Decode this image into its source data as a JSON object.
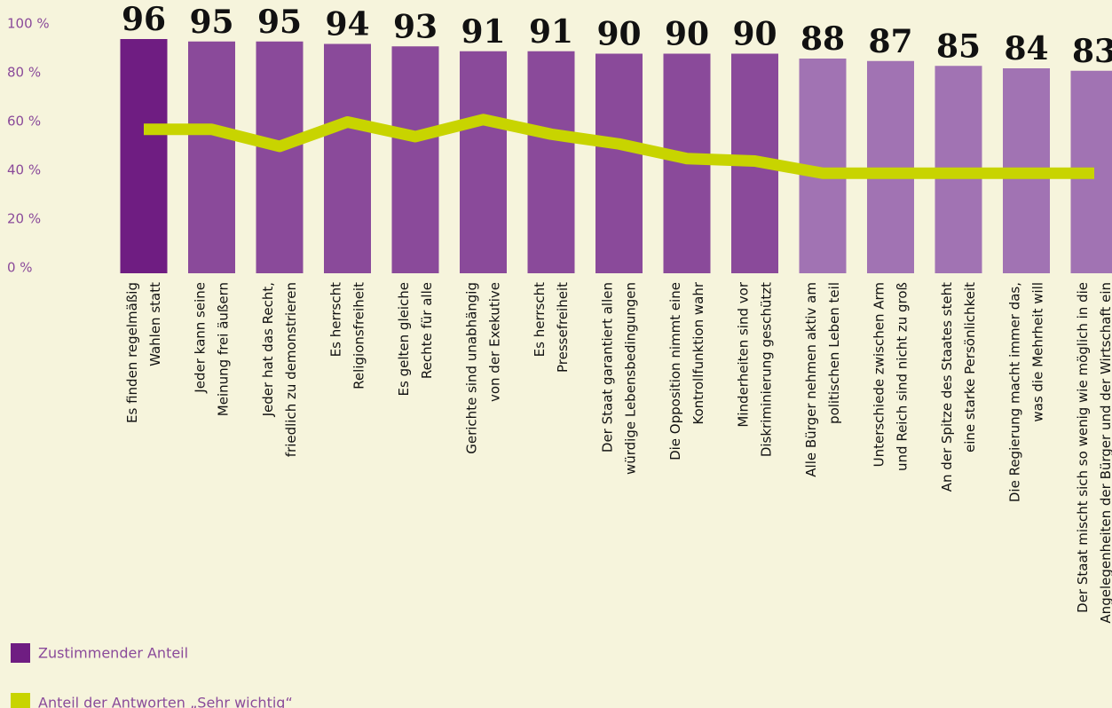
{
  "chart_data": {
    "type": "bar_line",
    "categories": [
      [
        "Es finden regelmäßig",
        "Wahlen statt"
      ],
      [
        "Jeder kann seine",
        "Meinung frei äußern"
      ],
      [
        "Jeder hat das Recht,",
        "friedlich zu demonstrieren"
      ],
      [
        "Es herrscht",
        "Religionsfreiheit"
      ],
      [
        "Es gelten gleiche",
        "Rechte für alle"
      ],
      [
        "Gerichte sind unabhängig",
        "von der Exekutive"
      ],
      [
        "Es herrscht",
        "Pressefreiheit"
      ],
      [
        "Der Staat garantiert allen",
        "würdige Lebensbedingungen"
      ],
      [
        "Die Opposition nimmt eine",
        "Kontrollfunktion wahr"
      ],
      [
        "Minderheiten sind vor",
        "Diskriminierung geschützt"
      ],
      [
        "Alle Bürger nehmen aktiv am",
        "politischen Leben teil"
      ],
      [
        "Unterschiede zwischen Arm",
        "und Reich sind nicht zu groß"
      ],
      [
        "An der Spitze des Staates steht",
        "eine starke Persönlichkeit"
      ],
      [
        "Die Regierung macht immer das,",
        "was die Mehrheit will"
      ],
      [
        "Der Staat mischt sich so wenig wie möglich in die",
        "Angelegenheiten der Bürger und der Wirtschaft ein"
      ]
    ],
    "series": [
      {
        "name": "Zustimmender Anteil",
        "color": "#6f1d82",
        "colors": [
          "#6f1d82",
          "#8a4a9a",
          "#8a4a9a",
          "#8a4a9a",
          "#8a4a9a",
          "#8a4a9a",
          "#8a4a9a",
          "#8a4a9a",
          "#8a4a9a",
          "#8a4a9a",
          "#a173b3",
          "#a173b3",
          "#a173b3",
          "#a173b3",
          "#a173b3"
        ],
        "values": [
          96,
          95,
          95,
          94,
          93,
          91,
          91,
          90,
          90,
          90,
          88,
          87,
          85,
          84,
          83
        ]
      },
      {
        "name": "Anteil der Antworten „Sehr wichtig“",
        "color": "#c8d400",
        "values": [
          59,
          59,
          52,
          62,
          56,
          63,
          57,
          53,
          47,
          46,
          41,
          41,
          41,
          41,
          41
        ]
      }
    ],
    "ylim": [
      0,
      100
    ],
    "yticks": [
      {
        "value": 0,
        "label": "0 %"
      },
      {
        "value": 20,
        "label": "20 %"
      },
      {
        "value": 40,
        "label": "40 %"
      },
      {
        "value": 60,
        "label": "60 %"
      },
      {
        "value": 80,
        "label": "80 %"
      },
      {
        "value": 100,
        "label": "100 %"
      }
    ]
  }
}
